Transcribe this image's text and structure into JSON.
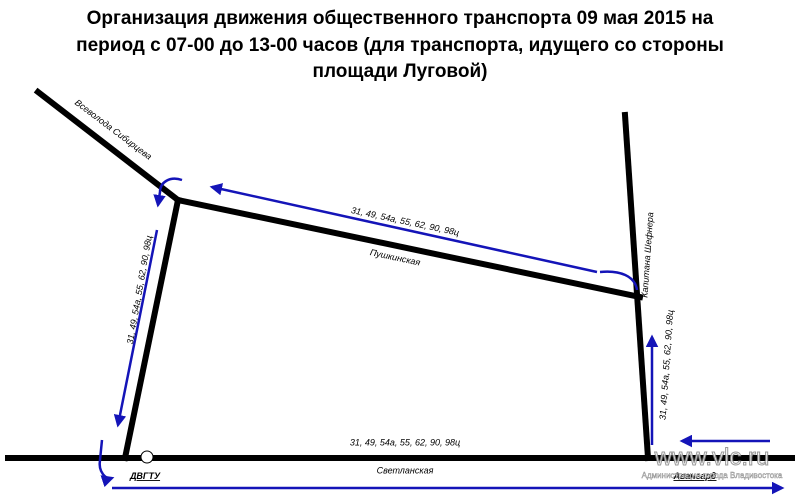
{
  "title": {
    "lines": [
      "Организация движения общественного транспорта 09 мая 2015 на",
      "период с 07-00 до 13-00 часов (для транспорта, идущего со стороны",
      "площади Луговой)"
    ]
  },
  "streets": [
    {
      "label": "Всеволода Сибирцева"
    },
    {
      "label": "Пушкинская"
    },
    {
      "label": "Капитана Шефнера"
    },
    {
      "label": "Светланская"
    }
  ],
  "routes": [
    {
      "label": "31, 49, 54а, 55, 62, 90, 98ц"
    },
    {
      "label": "31, 49, 54а, 55, 62, 90, 98ц"
    },
    {
      "label": "31, 49, 54а, 55, 62, 90, 98ц"
    },
    {
      "label": "31, 49, 54а, 55, 62, 90, 98ц"
    }
  ],
  "stops": [
    {
      "label": "ДВГТУ"
    },
    {
      "label": "Авангард"
    }
  ],
  "watermark": {
    "site": "www.vlc.ru",
    "owner": "Администрация города Владивостока"
  }
}
